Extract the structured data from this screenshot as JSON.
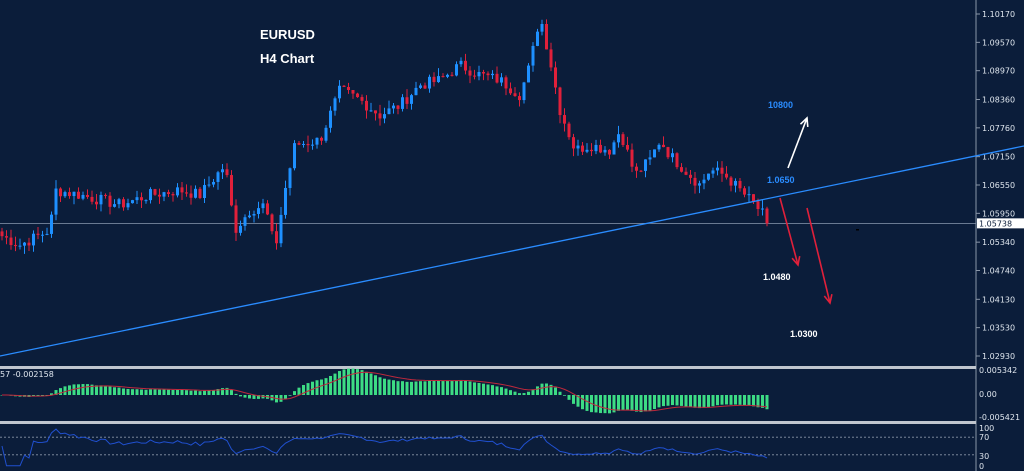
{
  "header": {
    "symbol": "EURUSD",
    "timeframe": "H4 Chart"
  },
  "chart_data": {
    "type": "candlestick",
    "symbol": "EURUSD",
    "timeframe": "H4",
    "price_axis_ticks": [
      "1.10170",
      "1.09570",
      "1.08970",
      "1.08360",
      "1.07760",
      "1.07150",
      "1.06550",
      "1.05950",
      "1.05340",
      "1.04740",
      "1.04130",
      "1.03530",
      "1.02930"
    ],
    "ylim": [
      1.028,
      1.104
    ],
    "current_price": "1.05738",
    "approx_close_path": [
      1.0549,
      1.0528,
      1.056,
      1.0644,
      1.0634,
      1.0613,
      1.0634,
      1.0644,
      1.0634,
      1.0697,
      1.056,
      1.0602,
      1.0613,
      1.0517,
      1.0644,
      1.074,
      1.075,
      1.0856,
      1.0835,
      1.0803,
      1.0824,
      1.0867,
      1.0877,
      1.0909,
      1.0888,
      1.0877,
      1.0846,
      1.0909,
      1.1015,
      1.092,
      1.0814,
      1.0729,
      1.074,
      1.0729,
      1.0771,
      1.0676,
      1.0708,
      1.075,
      1.0718,
      1.0676,
      1.0655,
      1.0687,
      1.0676,
      1.0644,
      1.0613,
      1.0574
    ],
    "colors": {
      "bull": "#1e90ff",
      "bear": "#e0203a",
      "trendline": "#2a8cff",
      "background": "#0b1d3a",
      "macd_hist": "#3ddc84",
      "macd_signal": "#c0283c",
      "rsi": "#2050d0"
    },
    "annotations": [
      {
        "text": "10800",
        "color": "#2a8cff",
        "arrow": "up",
        "arrow_color": "#ffffff"
      },
      {
        "text": "1.0650",
        "color": "#2a8cff"
      },
      {
        "text": "1.0480",
        "color": "#ffffff",
        "arrow": "down",
        "arrow_color": "#e0203a"
      },
      {
        "text": "1.0300",
        "color": "#ffffff",
        "arrow": "down",
        "arrow_color": "#e0203a"
      }
    ],
    "macd": {
      "label": "57 -0.002158",
      "ticks": [
        "0.005342",
        "0.00",
        "-0.005421"
      ]
    },
    "rsi": {
      "ticks": [
        "100",
        "70",
        "30",
        "0"
      ],
      "levels": [
        70,
        30
      ]
    }
  }
}
